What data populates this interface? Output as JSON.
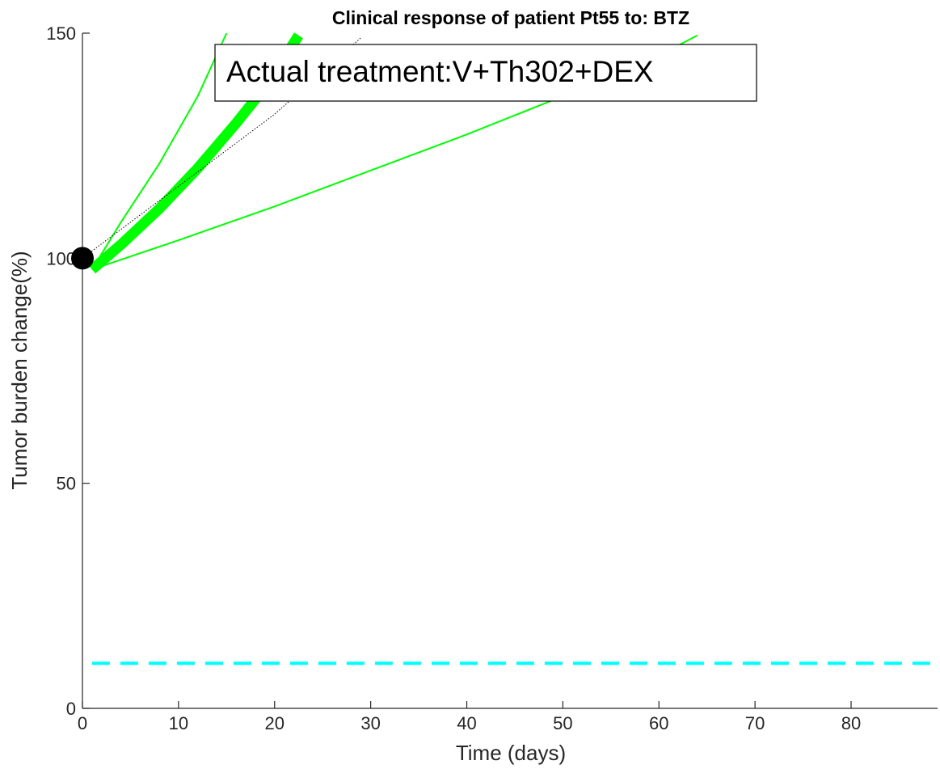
{
  "chart_data": {
    "type": "line",
    "title": "Clinical response of patient Pt55 to: BTZ",
    "xlabel": "Time (days)",
    "ylabel": "Tumor burden change(%)",
    "xlim": [
      0,
      89
    ],
    "ylim": [
      0,
      150
    ],
    "xticks": [
      0,
      10,
      20,
      30,
      40,
      50,
      60,
      70,
      80
    ],
    "yticks": [
      0,
      50,
      100,
      150
    ],
    "grid": false,
    "legend": {
      "text": "Actual treatment:V+Th302+DEX",
      "placement": "top"
    },
    "series": [
      {
        "style": "green-thick",
        "color": "#00ff00",
        "x": [
          1,
          4,
          8,
          12,
          16,
          19,
          22.5
        ],
        "y": [
          97.5,
          103,
          111,
          120,
          130,
          138,
          149.5
        ]
      },
      {
        "style": "green-thin",
        "color": "#00ff00",
        "x": [
          1,
          4,
          8,
          12,
          15
        ],
        "y": [
          97.5,
          108,
          121,
          136,
          150
        ]
      },
      {
        "style": "green-thin",
        "color": "#00ff00",
        "x": [
          1,
          10,
          20,
          30,
          40,
          50,
          60,
          64
        ],
        "y": [
          97.5,
          104,
          111.5,
          119.5,
          127.5,
          136,
          145,
          149.5
        ]
      },
      {
        "style": "black-dotted",
        "color": "#000000",
        "x": [
          0,
          10,
          20,
          29
        ],
        "y": [
          100,
          116,
          132,
          149
        ]
      },
      {
        "style": "cyan-dashed",
        "color": "#00ffff",
        "x": [
          1,
          89
        ],
        "y": [
          10,
          10
        ]
      }
    ],
    "points": [
      {
        "x": 0,
        "y": 100,
        "color": "#000000"
      }
    ]
  }
}
